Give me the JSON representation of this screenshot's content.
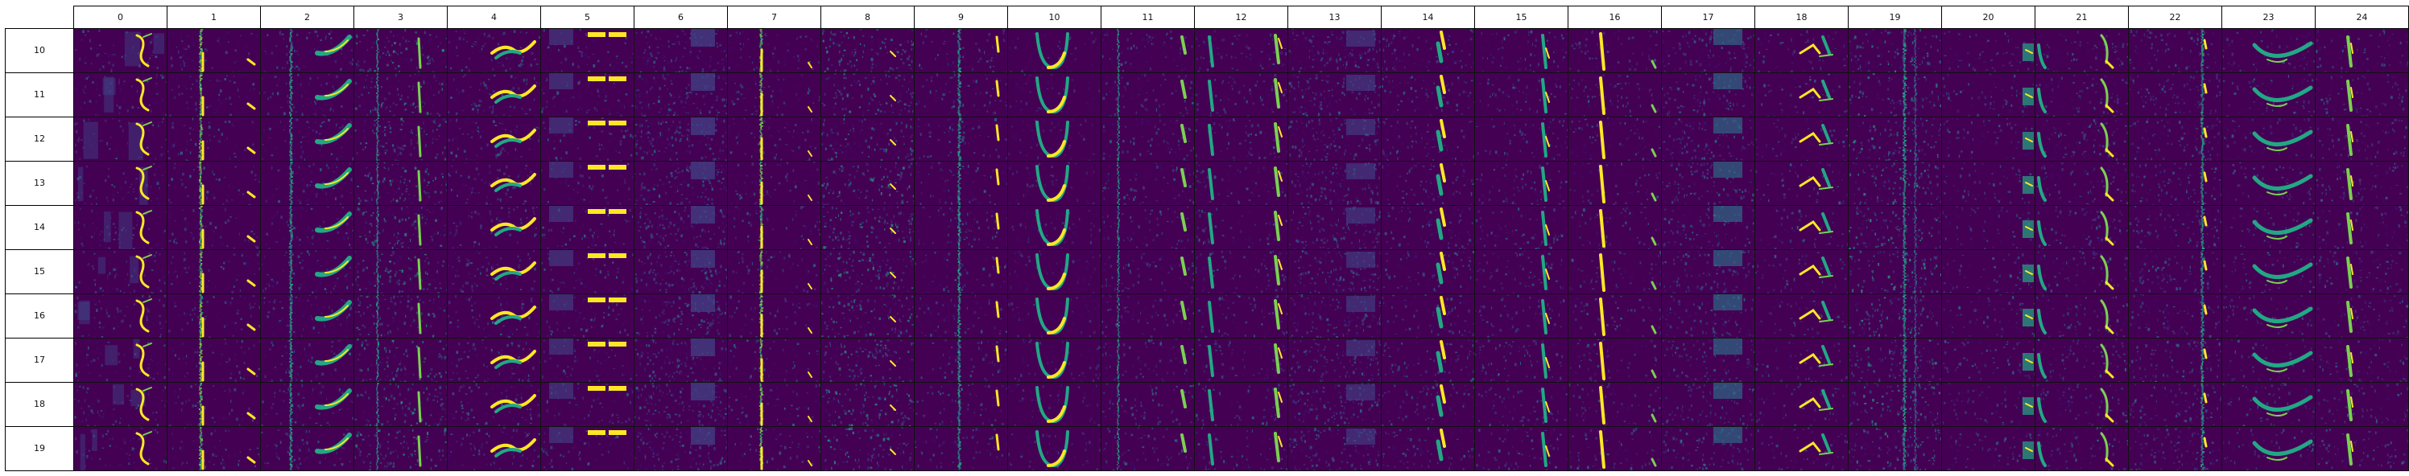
{
  "columns": [
    "0",
    "1",
    "2",
    "3",
    "4",
    "5",
    "6",
    "7",
    "8",
    "9",
    "10",
    "11",
    "12",
    "13",
    "14",
    "15",
    "16",
    "17",
    "18",
    "19",
    "20",
    "21",
    "22",
    "23",
    "24"
  ],
  "rows": [
    "10",
    "11",
    "12",
    "13",
    "14",
    "15",
    "16",
    "17",
    "18",
    "19"
  ],
  "colormap": {
    "background": "#440154",
    "dark_purple": "#3b0f70",
    "indigo": "#414487",
    "blue": "#2a788e",
    "teal": "#22a884",
    "green": "#7ad151",
    "yellow": "#fde725"
  },
  "patterns": [
    "sweep-right-hook",
    "vertical-streak-pair",
    "diagonal-sweep",
    "speckle-vertical",
    "wave-band",
    "top-bars",
    "noise-field",
    "bright-streak",
    "speckle-spots",
    "vertical-streak",
    "u-curve",
    "dual-streak",
    "hook-left",
    "faint-noise",
    "bright-right-edge",
    "streak-right",
    "streak-left",
    "striped-blocks",
    "hook-triangle",
    "dense-vertical",
    "bright-edge-blocks",
    "curl-right",
    "noise-streak",
    "v-valley",
    "double-bright"
  ]
}
